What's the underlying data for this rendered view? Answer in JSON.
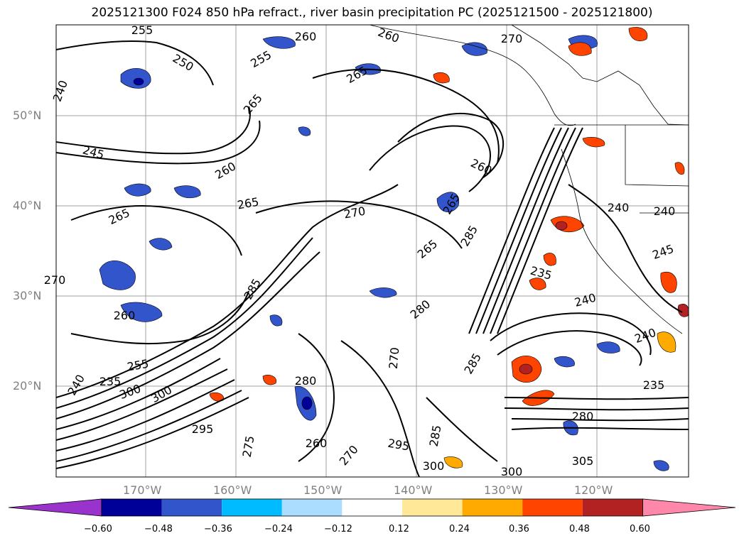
{
  "title": "2025121300 F024 850 hPa refract., river basin precipitation PC (2025121500 - 2025121800)",
  "latitude_labels": [
    "50°N",
    "40°N",
    "30°N",
    "20°N"
  ],
  "longitude_labels": [
    "170°W",
    "160°W",
    "150°W",
    "140°W",
    "130°W",
    "120°W"
  ],
  "contour_labels": [
    "255",
    "260",
    "260",
    "270",
    "255",
    "250",
    "265",
    "240",
    "265",
    "245",
    "260",
    "265",
    "265",
    "270",
    "265",
    "260",
    "265",
    "285",
    "285",
    "280",
    "270",
    "285",
    "235",
    "240",
    "240",
    "240",
    "235",
    "280",
    "305",
    "300",
    "295",
    "285",
    "260",
    "300",
    "300",
    "275",
    "295",
    "280",
    "270",
    "255",
    "240",
    "235",
    "300",
    "260",
    "270",
    "245",
    "240"
  ],
  "colorbar": {
    "ticks": [
      "−0.60",
      "−0.48",
      "−0.36",
      "−0.24",
      "−0.12",
      "0.12",
      "0.24",
      "0.36",
      "0.48",
      "0.60"
    ],
    "colors": [
      "#9933cc",
      "#000099",
      "#3355cc",
      "#00bbff",
      "#aaddff",
      "#ffffff",
      "#ffe999",
      "#ffaa00",
      "#ff4400",
      "#b22222",
      "#ff88aa"
    ]
  },
  "colors": {
    "land_border": "#000000",
    "grid": "#a0a0a0",
    "axis_label": "#808080"
  }
}
